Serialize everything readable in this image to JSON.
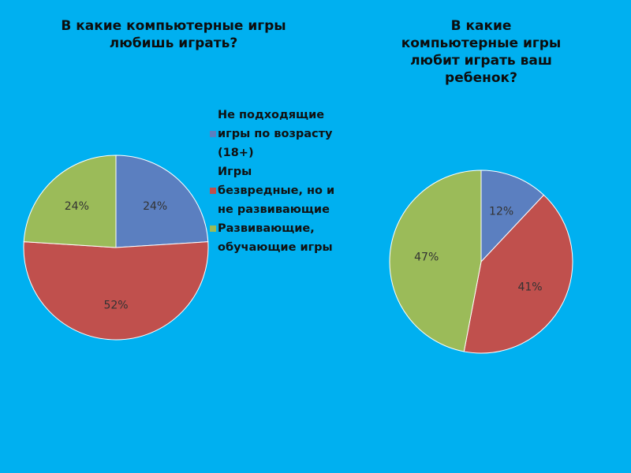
{
  "colors": {
    "blue": "#5b7fc0",
    "red": "#c0504d",
    "green": "#9bbb59",
    "background": "#00b0f0"
  },
  "legend": [
    {
      "label_lines": [
        "Не подходящие",
        "игры по возрасту",
        "(18+)"
      ],
      "color": "#5b7fc0",
      "icon": "square-marker-icon"
    },
    {
      "label_lines": [
        "Игры",
        "безвредные, но и",
        "не развивающие"
      ],
      "color": "#c0504d",
      "icon": "square-marker-icon"
    },
    {
      "label_lines": [
        "Развивающие,",
        "обучающие игры"
      ],
      "color": "#9bbb59",
      "icon": "square-marker-icon"
    }
  ],
  "chart_data": [
    {
      "type": "pie",
      "title": "В какие компьютерные игры любишь играть?",
      "title_lines": [
        "В какие компьютерные игры",
        "любишь играть?"
      ],
      "categories": [
        "Не подходящие игры по возрасту (18+)",
        "Игры безвредные, но и не развивающие",
        "Развивающие, обучающие игры"
      ],
      "values": [
        24,
        52,
        24
      ],
      "labels": [
        "24%",
        "52%",
        "24%"
      ],
      "legend": "right"
    },
    {
      "type": "pie",
      "title": "В какие компьютерные игры любит играть ваш ребенок?",
      "title_lines": [
        "В какие",
        "компьютерные  игры",
        "любит играть ваш",
        "ребенок?"
      ],
      "categories": [
        "Не подходящие игры по возрасту (18+)",
        "Игры безвредные, но и не развивающие",
        "Развивающие, обучающие игры"
      ],
      "values": [
        12,
        41,
        47
      ],
      "labels": [
        "12%",
        "41%",
        "47%"
      ]
    }
  ]
}
